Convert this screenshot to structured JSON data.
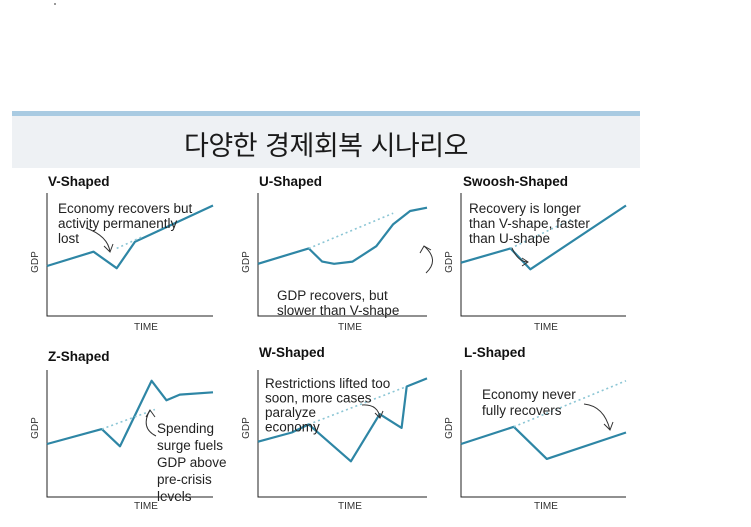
{
  "header": {
    "title": "다양한 경제회복 시나리오"
  },
  "chart_data": [
    {
      "type": "line",
      "title": "V-Shaped",
      "xlabel": "TIME",
      "ylabel": "GDP",
      "annotation": [
        "Economy recovers but",
        "activity permanently",
        "lost"
      ],
      "series": [
        {
          "role": "gdp",
          "x": [
            0,
            0.28,
            0.42,
            0.53,
            1
          ],
          "values": [
            0.4,
            0.53,
            0.38,
            0.62,
            0.95
          ]
        },
        {
          "role": "trend",
          "x": [
            0.42,
            0.58
          ],
          "values": [
            0.56,
            0.67
          ]
        }
      ]
    },
    {
      "type": "line",
      "title": "U-Shaped",
      "xlabel": "TIME",
      "ylabel": "GDP",
      "annotation": [
        "GDP recovers, but",
        "slower than V-shape"
      ],
      "series": [
        {
          "role": "gdp",
          "x": [
            0,
            0.3,
            0.38,
            0.45,
            0.56,
            0.7,
            0.8,
            0.9,
            1
          ],
          "values": [
            0.42,
            0.56,
            0.44,
            0.42,
            0.44,
            0.58,
            0.78,
            0.9,
            0.93
          ]
        },
        {
          "role": "trend",
          "x": [
            0.3,
            0.8
          ],
          "values": [
            0.56,
            0.88
          ]
        }
      ]
    },
    {
      "type": "line",
      "title": "Swoosh-Shaped",
      "xlabel": "TIME",
      "ylabel": "GDP",
      "annotation": [
        "Recovery is longer",
        "than V-shape, faster",
        "than U-shape"
      ],
      "series": [
        {
          "role": "gdp",
          "x": [
            0,
            0.3,
            0.42,
            1
          ],
          "values": [
            0.43,
            0.56,
            0.37,
            0.95
          ]
        },
        {
          "role": "trend",
          "x": [
            0.3,
            0.68
          ],
          "values": [
            0.56,
            0.83
          ]
        }
      ]
    },
    {
      "type": "line",
      "title": "Z-Shaped",
      "xlabel": "TIME",
      "ylabel": "GDP",
      "annotation": [
        "Spending",
        "surge fuels",
        "GDP above",
        "pre-crisis",
        "levels"
      ],
      "series": [
        {
          "role": "gdp",
          "x": [
            0,
            0.33,
            0.44,
            0.63,
            0.72,
            0.8,
            1
          ],
          "values": [
            0.4,
            0.53,
            0.38,
            0.95,
            0.78,
            0.83,
            0.85
          ]
        },
        {
          "role": "trend",
          "x": [
            0.33,
            0.65
          ],
          "values": [
            0.53,
            0.7
          ]
        }
      ]
    },
    {
      "type": "line",
      "title": "W-Shaped",
      "xlabel": "TIME",
      "ylabel": "GDP",
      "annotation": [
        "Restrictions lifted too",
        "soon, more cases",
        "paralyze",
        "economy"
      ],
      "series": [
        {
          "role": "gdp",
          "x": [
            0,
            0.2,
            0.3,
            0.55,
            0.72,
            0.85,
            0.88,
            1
          ],
          "values": [
            0.42,
            0.5,
            0.57,
            0.25,
            0.66,
            0.54,
            0.9,
            0.97
          ]
        },
        {
          "role": "trend",
          "x": [
            0.3,
            0.88
          ],
          "values": [
            0.57,
            0.9
          ]
        }
      ]
    },
    {
      "type": "line",
      "title": "L-Shaped",
      "xlabel": "TIME",
      "ylabel": "GDP",
      "annotation": [
        "Economy never",
        "fully recovers"
      ],
      "series": [
        {
          "role": "gdp",
          "x": [
            0,
            0.32,
            0.52,
            1
          ],
          "values": [
            0.4,
            0.55,
            0.27,
            0.5
          ]
        },
        {
          "role": "trend",
          "x": [
            0.32,
            1
          ],
          "values": [
            0.55,
            0.95
          ]
        }
      ]
    }
  ]
}
